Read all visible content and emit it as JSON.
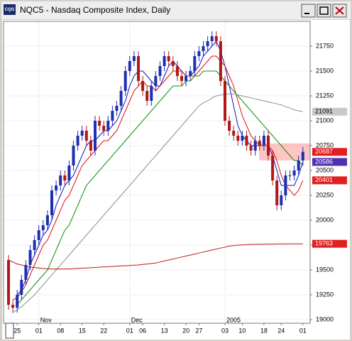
{
  "window": {
    "icon_label": "CQG"
  },
  "chart_data": {
    "type": "candlestick",
    "title": "NQC5 - Nasdaq Composite Index, Daily",
    "categories": [
      null,
      null,
      "25",
      null,
      null,
      null,
      null,
      "01",
      null,
      null,
      null,
      null,
      "08",
      null,
      null,
      null,
      null,
      "15",
      null,
      null,
      null,
      null,
      "22",
      null,
      null,
      null,
      null,
      null,
      "01",
      null,
      null,
      "06",
      null,
      null,
      null,
      null,
      "13",
      null,
      null,
      null,
      null,
      "20",
      null,
      null,
      "27",
      null,
      null,
      null,
      null,
      null,
      "03",
      null,
      null,
      null,
      "10",
      null,
      null,
      null,
      null,
      "18",
      null,
      null,
      null,
      "24",
      null,
      null,
      null,
      null,
      "01"
    ],
    "month_labels": [
      null,
      null,
      null,
      null,
      null,
      null,
      null,
      "Nov",
      null,
      null,
      null,
      null,
      null,
      null,
      null,
      null,
      null,
      null,
      null,
      null,
      null,
      null,
      null,
      null,
      null,
      null,
      null,
      null,
      "Dec",
      null,
      null,
      null,
      null,
      null,
      null,
      null,
      null,
      null,
      null,
      null,
      null,
      null,
      null,
      null,
      null,
      null,
      null,
      null,
      null,
      null,
      "2005",
      null,
      null,
      null,
      null,
      null,
      null,
      null,
      null,
      null,
      null,
      null,
      null,
      null,
      null,
      null,
      null,
      null,
      null
    ],
    "open": [
      19600,
      19150,
      19120,
      19250,
      19400,
      19550,
      19700,
      19800,
      19900,
      19950,
      20050,
      20300,
      20350,
      20450,
      20400,
      20550,
      20750,
      20850,
      20900,
      20800,
      20700,
      21000,
      20950,
      20900,
      21000,
      21100,
      21150,
      21300,
      21500,
      21600,
      21650,
      21400,
      21300,
      21200,
      21350,
      21450,
      21550,
      21650,
      21600,
      21550,
      21450,
      21400,
      21450,
      21500,
      21650,
      21700,
      21750,
      21800,
      21850,
      21800,
      21400,
      21000,
      20900,
      20850,
      20800,
      20850,
      20750,
      20700,
      20800,
      20750,
      20850,
      20650,
      20400,
      20150,
      20250,
      20450,
      20450,
      20500,
      20600
    ],
    "high": [
      19650,
      19200,
      19300,
      19450,
      19600,
      19750,
      19850,
      19950,
      20000,
      20100,
      20350,
      20400,
      20500,
      20500,
      20600,
      20800,
      20900,
      20950,
      20950,
      20850,
      21050,
      21050,
      21000,
      21050,
      21150,
      21200,
      21350,
      21550,
      21650,
      21700,
      21700,
      21450,
      21350,
      21400,
      21500,
      21600,
      21700,
      21700,
      21650,
      21600,
      21500,
      21500,
      21550,
      21700,
      21750,
      21800,
      21850,
      21900,
      21900,
      21850,
      21450,
      21050,
      20950,
      20900,
      20900,
      20900,
      20800,
      20850,
      20850,
      20900,
      20900,
      20700,
      20450,
      20300,
      20500,
      20500,
      20550,
      20650,
      20737
    ],
    "low": [
      19100,
      19070,
      19070,
      19200,
      19350,
      19500,
      19650,
      19750,
      19850,
      19900,
      20000,
      20250,
      20300,
      20350,
      20350,
      20500,
      20700,
      20800,
      20750,
      20650,
      20650,
      20900,
      20850,
      20850,
      20950,
      21050,
      21100,
      21250,
      21450,
      21550,
      21350,
      21250,
      21150,
      21150,
      21300,
      21400,
      21500,
      21550,
      21500,
      21400,
      21350,
      21350,
      21400,
      21450,
      21600,
      21650,
      21700,
      21750,
      21750,
      21350,
      20950,
      20850,
      20800,
      20750,
      20750,
      20700,
      20650,
      20650,
      20700,
      20700,
      20600,
      20350,
      20100,
      20100,
      20200,
      20400,
      20400,
      20450,
      20550
    ],
    "close": [
      19150,
      19120,
      19250,
      19400,
      19550,
      19700,
      19800,
      19900,
      19950,
      20050,
      20300,
      20350,
      20450,
      20400,
      20550,
      20750,
      20850,
      20900,
      20800,
      20700,
      21000,
      20950,
      20900,
      21000,
      21100,
      21150,
      21300,
      21500,
      21600,
      21650,
      21400,
      21300,
      21200,
      21350,
      21450,
      21550,
      21650,
      21600,
      21550,
      21450,
      21400,
      21450,
      21500,
      21650,
      21700,
      21750,
      21800,
      21850,
      21800,
      21400,
      21000,
      20900,
      20850,
      20800,
      20850,
      20750,
      20700,
      20800,
      20750,
      20850,
      20650,
      20400,
      20150,
      20250,
      20450,
      20450,
      20500,
      20600,
      20687
    ],
    "up_color": "#1f2fb0",
    "down_color": "#b01818",
    "close_tag_color": "#e02020",
    "series": [
      {
        "color": "#1010d0",
        "tag_color": "#5030b0",
        "values": [
          null,
          null,
          19250,
          19300,
          19400,
          19550,
          19650,
          19750,
          19850,
          19900,
          20000,
          20150,
          20250,
          20350,
          20400,
          20450,
          20550,
          20650,
          20750,
          20800,
          20800,
          20850,
          20900,
          20900,
          20950,
          21000,
          21100,
          21200,
          21350,
          21450,
          21500,
          21500,
          21450,
          21400,
          21350,
          21350,
          21450,
          21550,
          21600,
          21550,
          21500,
          21450,
          21450,
          21500,
          21550,
          21650,
          21700,
          21750,
          21800,
          21700,
          21550,
          21350,
          21150,
          20950,
          20850,
          20800,
          20750,
          20750,
          20750,
          20750,
          20750,
          20650,
          20500,
          20350,
          20350,
          20350,
          20350,
          20450,
          20586
        ]
      },
      {
        "color": "#e01010",
        "tag_color": "#e02020",
        "values": [
          null,
          19200,
          19220,
          19280,
          19350,
          19450,
          19550,
          19650,
          19750,
          19800,
          19900,
          20000,
          20100,
          20200,
          20250,
          20350,
          20450,
          20550,
          20600,
          20650,
          20700,
          20750,
          20800,
          20800,
          20850,
          20900,
          21000,
          21100,
          21200,
          21300,
          21350,
          21400,
          21350,
          21350,
          21300,
          21350,
          21400,
          21450,
          21500,
          21500,
          21500,
          21450,
          21450,
          21450,
          21500,
          21550,
          21600,
          21650,
          21650,
          21600,
          21550,
          21450,
          21350,
          21200,
          21050,
          20950,
          20850,
          20800,
          20750,
          20750,
          20750,
          20700,
          20600,
          20450,
          20350,
          20300,
          20250,
          20300,
          20401
        ]
      },
      {
        "color": "#109010",
        "values": [
          null,
          null,
          19150,
          19200,
          19250,
          19300,
          19350,
          19400,
          19450,
          19500,
          19600,
          19700,
          19800,
          19900,
          19950,
          20050,
          20150,
          20250,
          20350,
          20400,
          20450,
          20500,
          20550,
          20600,
          20650,
          20700,
          20750,
          20800,
          20850,
          20900,
          20950,
          21000,
          21050,
          21100,
          21150,
          21200,
          21250,
          21300,
          21350,
          21350,
          21350,
          21400,
          21400,
          21450,
          21450,
          21500,
          21500,
          21500,
          21500,
          21450,
          21400,
          21350,
          21300,
          21250,
          21200,
          21150,
          21100,
          21050,
          21000,
          20950,
          20900,
          20850,
          20800,
          20750,
          20700,
          20650,
          20600,
          20600,
          20550
        ]
      },
      {
        "color": "#909090",
        "tag_color": "#c8c8c8",
        "values": [
          null,
          19070,
          19100,
          19130,
          19170,
          19210,
          19250,
          19300,
          19350,
          19400,
          19450,
          19500,
          19550,
          19600,
          19650,
          19700,
          19750,
          19800,
          19850,
          19900,
          19950,
          20000,
          20050,
          20100,
          20150,
          20200,
          20250,
          20300,
          20350,
          20400,
          20450,
          20500,
          20550,
          20600,
          20650,
          20700,
          20750,
          20800,
          20850,
          20900,
          20950,
          21000,
          21050,
          21100,
          21150,
          21180,
          21200,
          21230,
          21250,
          21260,
          21270,
          21270,
          21270,
          21260,
          21250,
          21240,
          21230,
          21220,
          21210,
          21200,
          21190,
          21180,
          21170,
          21160,
          21140,
          21130,
          21110,
          21100,
          21091
        ]
      },
      {
        "color": "#c01818",
        "tag_color": "#e02020",
        "values": [
          19600,
          19580,
          19560,
          19550,
          19540,
          19530,
          19525,
          19520,
          19515,
          19512,
          19510,
          19510,
          19510,
          19510,
          19510,
          19512,
          19515,
          19518,
          19520,
          19522,
          19525,
          19528,
          19530,
          19532,
          19535,
          19538,
          19540,
          19542,
          19545,
          19548,
          19550,
          19555,
          19560,
          19565,
          19570,
          19580,
          19590,
          19600,
          19610,
          19620,
          19630,
          19640,
          19650,
          19660,
          19670,
          19680,
          19690,
          19700,
          19710,
          19720,
          19730,
          19740,
          19745,
          19750,
          19752,
          19754,
          19756,
          19757,
          19758,
          19759,
          19760,
          19760,
          19761,
          19761,
          19762,
          19762,
          19763,
          19763,
          19763
        ]
      }
    ],
    "ylim": [
      18964,
      22000
    ],
    "yticks": [
      19000,
      19250,
      19500,
      19750,
      20000,
      20250,
      20500,
      20750,
      21000,
      21250,
      21500,
      21750
    ],
    "grid": true
  }
}
